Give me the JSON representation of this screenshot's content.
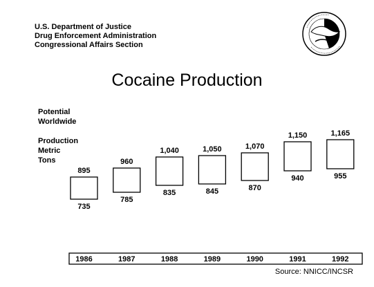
{
  "header": {
    "agency_lines": [
      "U.S. Department of Justice",
      "Drug Enforcement Administration",
      "Congressional Affairs Section"
    ]
  },
  "seal": {
    "icon": "dea-seal-icon"
  },
  "chart_data": {
    "type": "range-bar",
    "title": "Cocaine Production",
    "ylabel_lines": [
      "Potential",
      "Worldwide",
      "Production",
      "Metric",
      "Tons"
    ],
    "categories": [
      "1986",
      "1987",
      "1988",
      "1989",
      "1990",
      "1991",
      "1992"
    ],
    "high": [
      895,
      960,
      1040,
      1050,
      1070,
      1150,
      1165
    ],
    "low": [
      735,
      785,
      835,
      845,
      870,
      940,
      955
    ],
    "high_labels": [
      "895",
      "960",
      "1,040",
      "1,050",
      "1,070",
      "1,150",
      "1,165"
    ],
    "low_labels": [
      "735",
      "785",
      "835",
      "845",
      "870",
      "940",
      "955"
    ],
    "ylim": [
      700,
      1200
    ],
    "grid": false,
    "source": "Source: NNICC/INCSR"
  }
}
